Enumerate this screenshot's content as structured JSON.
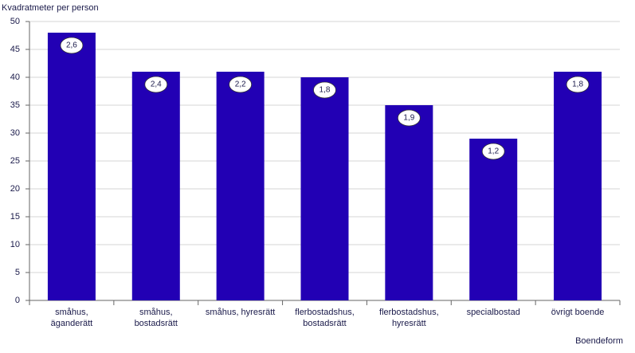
{
  "chart_data": {
    "type": "bar",
    "y_axis_title": "Kvadratmeter  per person",
    "x_axis_title": "Boendeform",
    "categories": [
      "småhus,\näganderätt",
      "småhus,\nbostadsrätt",
      "småhus, hyresrätt",
      "flerbostadshus,\nbostadsrätt",
      "flerbostadshus,\nhyresrätt",
      "specialbostad",
      "övrigt boende"
    ],
    "values": [
      48,
      41,
      41,
      40,
      35,
      29,
      41
    ],
    "annotations": [
      "2,6",
      "2,4",
      "2,2",
      "1,8",
      "1,9",
      "1,2",
      "1,8"
    ],
    "color": "#2200b4",
    "ylim": [
      0,
      50
    ],
    "yticks": [
      0,
      5,
      10,
      15,
      20,
      25,
      30,
      35,
      40,
      45,
      50
    ],
    "grid": true
  }
}
